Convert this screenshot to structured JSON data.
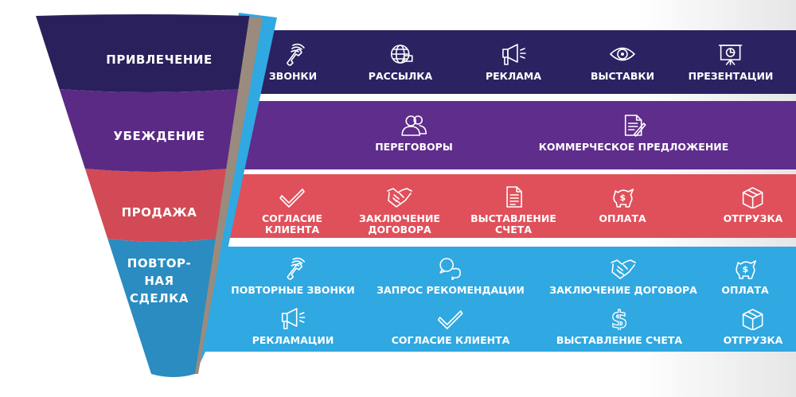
{
  "colors": {
    "attraction": "#2b2262",
    "persuasion": "#5f2d8b",
    "sale": "#e0505a",
    "repeat": "#30a8e1"
  },
  "stages": [
    {
      "label": "ПРИВЛЕЧЕНИЕ",
      "items": [
        {
          "icon": "phone-icon",
          "label": "ЗВОНКИ"
        },
        {
          "icon": "globe-mail-icon",
          "label": "РАССЫЛКА"
        },
        {
          "icon": "megaphone-icon",
          "label": "РЕКЛАМА"
        },
        {
          "icon": "eye-icon",
          "label": "ВЫСТАВКИ"
        },
        {
          "icon": "presentation-icon",
          "label": "ПРЕЗЕНТАЦИИ"
        }
      ]
    },
    {
      "label": "УБЕЖДЕНИЕ",
      "items": [
        {
          "icon": "people-icon",
          "label": "ПЕРЕГОВОРЫ"
        },
        {
          "icon": "document-pen-icon",
          "label": "КОММЕРЧЕСКОЕ ПРЕДЛОЖЕНИЕ"
        }
      ]
    },
    {
      "label": "ПРОДАЖА",
      "items": [
        {
          "icon": "check-icon",
          "label": "СОГЛАСИЕ\nКЛИЕНТА"
        },
        {
          "icon": "handshake-icon",
          "label": "ЗАКЛЮЧЕНИЕ\nДОГОВОРА"
        },
        {
          "icon": "invoice-icon",
          "label": "ВЫСТАВЛЕНИЕ\nСЧЕТА"
        },
        {
          "icon": "piggy-bank-icon",
          "label": "ОПЛАТА"
        },
        {
          "icon": "box-icon",
          "label": "ОТГРУЗКА"
        }
      ]
    },
    {
      "label": "ПОВТОР-\nНАЯ\nСДЕЛКА",
      "items": [
        {
          "icon": "phone-icon",
          "label": "ПОВТОРНЫЕ ЗВОНКИ"
        },
        {
          "icon": "chat-icon",
          "label": "ЗАПРОС РЕКОМЕНДАЦИИ"
        },
        {
          "icon": "handshake-icon",
          "label": "ЗАКЛЮЧЕНИЕ ДОГОВОРА"
        },
        {
          "icon": "piggy-bank-icon",
          "label": "ОПЛАТА"
        },
        {
          "icon": "megaphone-icon",
          "label": "РЕКЛАМАЦИИ"
        },
        {
          "icon": "check-icon",
          "label": "СОГЛАСИЕ КЛИЕНТА"
        },
        {
          "icon": "dollar-icon",
          "label": "ВЫСТАВЛЕНИЕ СЧЕТА"
        },
        {
          "icon": "box-icon",
          "label": "ОТГРУЗКА"
        }
      ]
    }
  ]
}
